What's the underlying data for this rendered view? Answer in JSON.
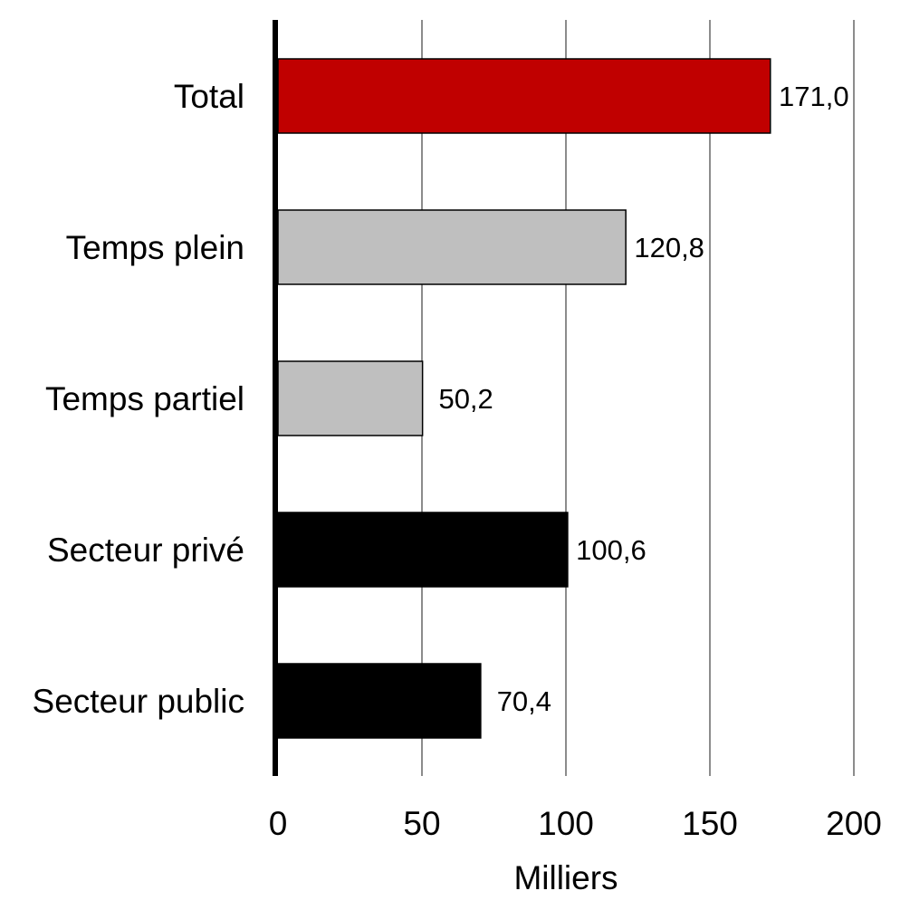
{
  "chart_data": {
    "type": "bar",
    "orientation": "horizontal",
    "categories": [
      "Total",
      "Temps plein",
      "Temps partiel",
      "Secteur privé",
      "Secteur public"
    ],
    "values": [
      171.0,
      120.8,
      50.2,
      100.6,
      70.4
    ],
    "value_labels": [
      "171,0",
      "120,8",
      "50,2",
      "100,6",
      "70,4"
    ],
    "bar_colors": [
      "#c00000",
      "#bfbfbf",
      "#bfbfbf",
      "#000000",
      "#000000"
    ],
    "xlabel": "Milliers",
    "xlim": [
      0,
      200
    ],
    "xticks": [
      0,
      50,
      100,
      150,
      200
    ],
    "xtick_labels": [
      "0",
      "50",
      "100",
      "150",
      "200"
    ],
    "grid": "vertical",
    "legend": "none"
  }
}
